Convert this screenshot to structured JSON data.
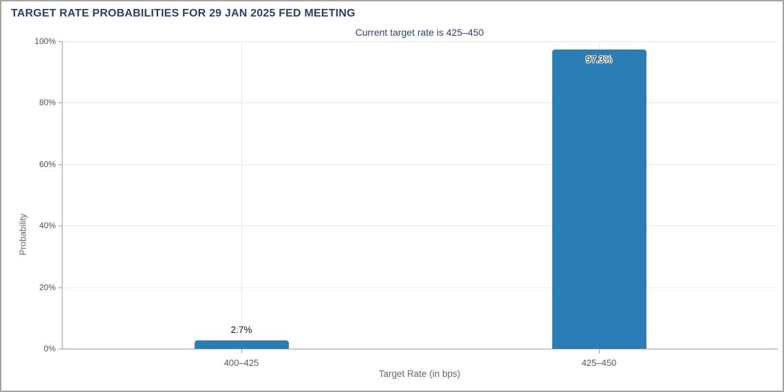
{
  "chart_data": {
    "type": "bar",
    "title": "TARGET RATE PROBABILITIES FOR 29 JAN 2025 FED MEETING",
    "subtitle": "Current target rate is 425–450",
    "categories": [
      "400–425",
      "425–450"
    ],
    "values": [
      2.7,
      97.3
    ],
    "value_labels": [
      "2.7%",
      "97.3%"
    ],
    "xlabel": "Target Rate (in bps)",
    "ylabel": "Probability",
    "ylim": [
      0,
      100
    ],
    "yticks": [
      0,
      20,
      40,
      60,
      80,
      100
    ],
    "ytick_labels": [
      "0%",
      "20%",
      "40%",
      "60%",
      "80%",
      "100%"
    ],
    "grid": true,
    "legend": "none",
    "bar_color": "#2a7eb5",
    "title_color": "#2b3f6b",
    "axis_text_color": "#595959"
  }
}
